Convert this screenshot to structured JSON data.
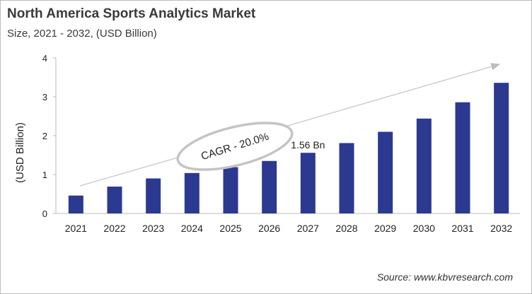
{
  "chart_data": {
    "type": "bar",
    "title": "North America Sports Analytics Market",
    "subtitle": "Size, 2021 - 2032, (USD Billion)",
    "ylabel": "(USD Billion)",
    "xlabel": "",
    "categories": [
      "2021",
      "2022",
      "2023",
      "2024",
      "2025",
      "2026",
      "2027",
      "2028",
      "2029",
      "2030",
      "2031",
      "2032"
    ],
    "values": [
      0.46,
      0.69,
      0.9,
      1.04,
      1.19,
      1.35,
      1.56,
      1.81,
      2.1,
      2.44,
      2.86,
      3.36
    ],
    "ylim": [
      0,
      4
    ],
    "yticks": [
      "0",
      "1",
      "2",
      "3",
      "4"
    ],
    "grid": false,
    "bar_color": "#2b3990",
    "data_labels": [
      {
        "category": "2027",
        "text": "1.56 Bn"
      }
    ],
    "annotation": "CAGR - 20.0%",
    "source": "Source: www.kbvresearch.com"
  }
}
